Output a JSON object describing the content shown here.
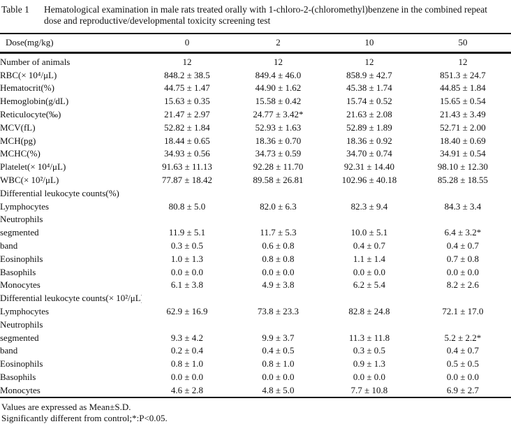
{
  "title": {
    "label": "Table 1",
    "caption": "Hematological examination in male rats treated orally with 1-chloro-2-(chloromethyl)benzene in the combined repeat dose and reproductive/developmental toxicity screening test"
  },
  "table": {
    "header": {
      "label": "Dose(mg/kg)",
      "doses": [
        "0",
        "2",
        "10",
        "50"
      ]
    },
    "rows": [
      {
        "label": "Number of animals",
        "indent": 0,
        "values": [
          "12",
          "12",
          "12",
          "12"
        ]
      },
      {
        "label": "RBC(× 10⁴/μL)",
        "indent": 0,
        "values": [
          "848.2 ± 38.5",
          "849.4 ± 46.0",
          "858.9 ± 42.7",
          "851.3 ± 24.7"
        ]
      },
      {
        "label": "Hematocrit(%)",
        "indent": 0,
        "values": [
          "44.75 ± 1.47",
          "44.90 ± 1.62",
          "45.38 ± 1.74",
          "44.85 ± 1.84"
        ]
      },
      {
        "label": "Hemoglobin(g/dL)",
        "indent": 0,
        "values": [
          "15.63 ± 0.35",
          "15.58 ± 0.42",
          "15.74 ± 0.52",
          "15.65 ± 0.54"
        ]
      },
      {
        "label": "Reticulocyte(‰)",
        "indent": 0,
        "values": [
          "21.47 ± 2.97",
          "24.77 ± 3.42*",
          "21.63 ± 2.08",
          "21.43 ± 3.49"
        ]
      },
      {
        "label": "MCV(fL)",
        "indent": 0,
        "values": [
          "52.82 ± 1.84",
          "52.93 ± 1.63",
          "52.89 ± 1.89",
          "52.71 ± 2.00"
        ]
      },
      {
        "label": "MCH(pg)",
        "indent": 0,
        "values": [
          "18.44 ± 0.65",
          "18.36 ± 0.70",
          "18.36 ± 0.92",
          "18.40 ± 0.69"
        ]
      },
      {
        "label": "MCHC(%)",
        "indent": 0,
        "values": [
          "34.93 ± 0.56",
          "34.73 ± 0.59",
          "34.70 ± 0.74",
          "34.91 ± 0.54"
        ]
      },
      {
        "label": "Platelet(× 10⁴/μL)",
        "indent": 0,
        "values": [
          "91.63 ± 11.13",
          "92.28 ± 11.70",
          "92.31 ± 14.40",
          "98.10 ± 12.30"
        ]
      },
      {
        "label": "WBC(× 10²/μL)",
        "indent": 0,
        "values": [
          "77.87 ± 18.42",
          "89.58 ± 26.81",
          "102.96 ± 40.18",
          "85.28 ± 18.55"
        ]
      },
      {
        "label": "Differential leukocyte counts(%)",
        "indent": 0,
        "values": [
          "",
          "",
          "",
          ""
        ]
      },
      {
        "label": "Lymphocytes",
        "indent": 1,
        "values": [
          "80.8 ± 5.0",
          "82.0 ± 6.3",
          "82.3 ± 9.4",
          "84.3 ± 3.4"
        ]
      },
      {
        "label": "Neutrophils",
        "indent": 1,
        "values": [
          "",
          "",
          "",
          ""
        ]
      },
      {
        "label": "segmented",
        "indent": 2,
        "values": [
          "11.9 ± 5.1",
          "11.7 ± 5.3",
          "10.0 ± 5.1",
          "6.4 ± 3.2*"
        ]
      },
      {
        "label": "band",
        "indent": 2,
        "values": [
          "0.3 ± 0.5",
          "0.6 ± 0.8",
          "0.4 ± 0.7",
          "0.4 ± 0.7"
        ]
      },
      {
        "label": "Eosinophils",
        "indent": 1,
        "values": [
          "1.0 ± 1.3",
          "0.8 ± 0.8",
          "1.1 ± 1.4",
          "0.7 ± 0.8"
        ]
      },
      {
        "label": "Basophils",
        "indent": 1,
        "values": [
          "0.0 ± 0.0",
          "0.0 ± 0.0",
          "0.0 ± 0.0",
          "0.0 ± 0.0"
        ]
      },
      {
        "label": "Monocytes",
        "indent": 1,
        "values": [
          "6.1 ± 3.8",
          "4.9 ± 3.8",
          "6.2 ± 5.4",
          "8.2 ± 2.6"
        ]
      },
      {
        "label": "Differential leukocyte counts(× 10²/μL)",
        "indent": 0,
        "values": [
          "",
          "",
          "",
          ""
        ]
      },
      {
        "label": "Lymphocytes",
        "indent": 1,
        "values": [
          "62.9 ± 16.9",
          "73.8 ± 23.3",
          "82.8 ± 24.8",
          "72.1 ± 17.0"
        ]
      },
      {
        "label": "Neutrophils",
        "indent": 1,
        "values": [
          "",
          "",
          "",
          ""
        ]
      },
      {
        "label": "segmented",
        "indent": 2,
        "values": [
          "9.3 ± 4.2",
          "9.9 ± 3.7",
          "11.3 ± 11.8",
          "5.2 ± 2.2*"
        ]
      },
      {
        "label": "band",
        "indent": 2,
        "values": [
          "0.2 ± 0.4",
          "0.4 ± 0.5",
          "0.3 ± 0.5",
          "0.4 ± 0.7"
        ]
      },
      {
        "label": "Eosinophils",
        "indent": 1,
        "values": [
          "0.8 ± 1.0",
          "0.8 ± 1.0",
          "0.9 ± 1.3",
          "0.5 ± 0.5"
        ]
      },
      {
        "label": "Basophils",
        "indent": 1,
        "values": [
          "0.0 ± 0.0",
          "0.0 ± 0.0",
          "0.0 ± 0.0",
          "0.0 ± 0.0"
        ]
      },
      {
        "label": "Monocytes",
        "indent": 1,
        "values": [
          "4.6 ± 2.8",
          "4.8 ± 5.0",
          "7.7 ± 10.8",
          "6.9 ± 2.7"
        ]
      }
    ]
  },
  "footnotes": [
    "Values are expressed as Mean±S.D.",
    "Significantly different from control;*:P<0.05."
  ]
}
